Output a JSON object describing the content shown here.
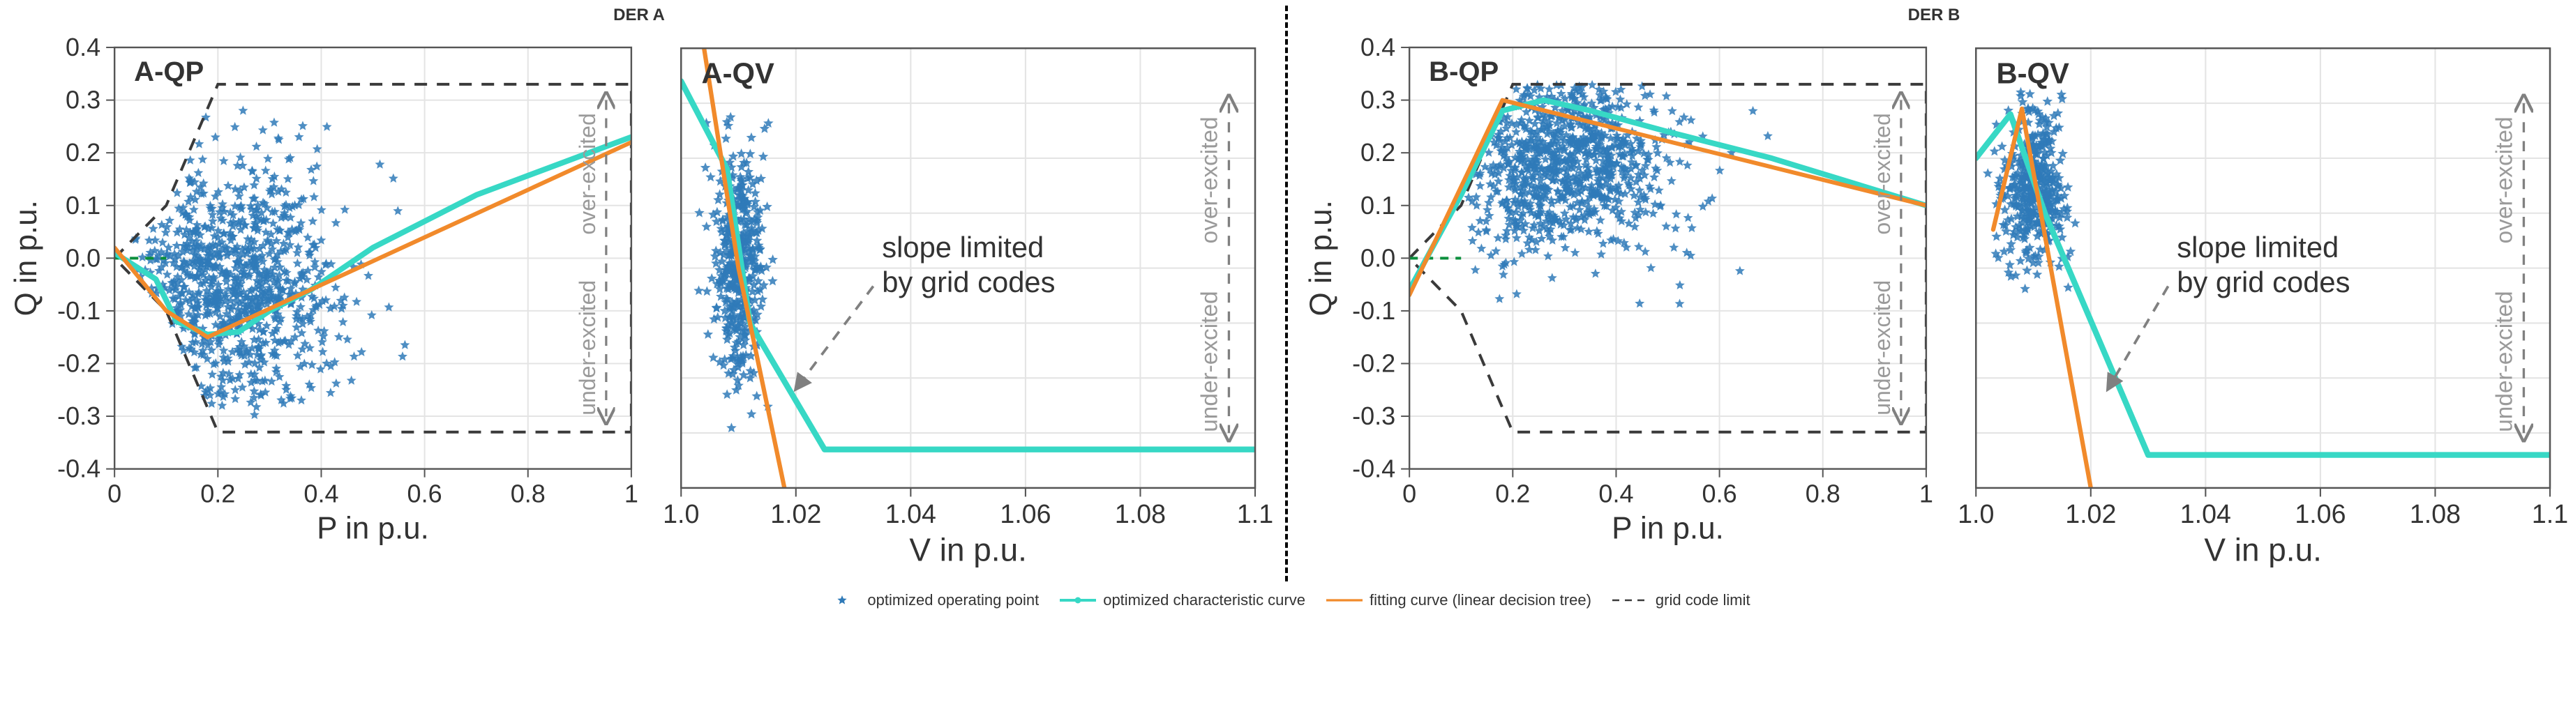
{
  "titles": {
    "derA": "DER A",
    "derB": "DER B"
  },
  "labels": {
    "P": "P in p.u.",
    "V": "V in p.u.",
    "Q": "Q in p.u.",
    "A_QP": "A-QP",
    "A_QV": "A-QV",
    "B_QP": "B-QP",
    "B_QV": "B-QV",
    "slope": "slope limited\nby grid codes",
    "over": "over-excited",
    "under": "under-excited"
  },
  "legend": {
    "scatter": "optimized operating point",
    "charCurve": "optimized characteristic curve",
    "fitCurve": "fitting curve (linear decision tree)",
    "gridLimit": "grid code limit"
  },
  "colors": {
    "scatter": "#2f7ab8",
    "charCurve": "#37d8c5",
    "fitCurve": "#f18a2b",
    "gridLimit": "#3a3a3a",
    "axis": "#555555",
    "gridline": "#e4e4e4",
    "text": "#333333",
    "annotArrow": "#808080",
    "verticalText": "#9a9a9a",
    "bg": "#ffffff"
  },
  "axes": {
    "P": {
      "min": 0.0,
      "max": 1.0,
      "ticks": [
        0.0,
        0.2,
        0.4,
        0.6,
        0.8,
        1.0
      ]
    },
    "V": {
      "min": 1.0,
      "max": 1.1,
      "ticks": [
        1.0,
        1.02,
        1.04,
        1.06,
        1.08,
        1.1
      ],
      "tickLabels": [
        "1.0",
        "1.02",
        "1.04",
        "1.06",
        "1.08",
        "1.1"
      ]
    },
    "Q": {
      "min": -0.4,
      "max": 0.4,
      "ticks": [
        -0.4,
        -0.3,
        -0.2,
        -0.1,
        0.0,
        0.1,
        0.2,
        0.3,
        0.4
      ]
    }
  },
  "style": {
    "marker_size": 2.2,
    "char_line_width": 4,
    "fit_line_width": 3,
    "dash_line_width": 2,
    "grid_line_width": 1,
    "tick_fontsize": 18,
    "axis_label_fontsize": 22,
    "panel_label_fontsize": 20,
    "title_fontsize": 24,
    "annot_fontsize": 20,
    "vert_fontsize": 16
  },
  "gridCode_QP": [
    [
      0.0,
      0.0
    ],
    [
      0.1,
      0.1
    ],
    [
      0.2,
      0.33
    ],
    [
      1.0,
      0.33
    ],
    [
      1.0,
      -0.33
    ],
    [
      0.2,
      -0.33
    ],
    [
      0.1,
      -0.1
    ],
    [
      0.0,
      0.0
    ]
  ],
  "A_QP": {
    "char": [
      [
        0.0,
        0.01
      ],
      [
        0.08,
        -0.04
      ],
      [
        0.12,
        -0.12
      ],
      [
        0.18,
        -0.145
      ],
      [
        0.24,
        -0.14
      ],
      [
        0.3,
        -0.1
      ],
      [
        0.38,
        -0.06
      ],
      [
        0.5,
        0.02
      ],
      [
        0.7,
        0.12
      ],
      [
        1.0,
        0.23
      ]
    ],
    "fit": [
      [
        0.0,
        0.02
      ],
      [
        0.1,
        -0.1
      ],
      [
        0.18,
        -0.15
      ],
      [
        1.0,
        0.22
      ]
    ],
    "scatter_count": 900,
    "scatter_range": {
      "p": [
        0.03,
        0.62
      ],
      "q": [
        -0.3,
        0.34
      ]
    },
    "scatter_center": {
      "p": 0.22,
      "q": -0.05
    },
    "scatter_seed": 11
  },
  "A_QV": {
    "char": [
      [
        1.0,
        0.34
      ],
      [
        1.008,
        0.18
      ],
      [
        1.012,
        -0.1
      ],
      [
        1.025,
        -0.33
      ],
      [
        1.1,
        -0.33
      ]
    ],
    "fit": [
      [
        1.004,
        0.4
      ],
      [
        1.01,
        0.0
      ],
      [
        1.018,
        -0.4
      ]
    ],
    "scatter_count": 420,
    "scatter_range": {
      "v": [
        1.003,
        1.016
      ],
      "q": [
        -0.3,
        0.3
      ]
    },
    "scatter_center": {
      "v": 1.01,
      "q": 0.0
    },
    "scatter_seed": 21
  },
  "B_QP": {
    "char": [
      [
        0.0,
        -0.06
      ],
      [
        0.1,
        0.12
      ],
      [
        0.18,
        0.28
      ],
      [
        0.26,
        0.3
      ],
      [
        0.35,
        0.28
      ],
      [
        0.5,
        0.24
      ],
      [
        0.7,
        0.19
      ],
      [
        1.0,
        0.1
      ]
    ],
    "fit": [
      [
        0.0,
        -0.07
      ],
      [
        0.18,
        0.3
      ],
      [
        1.0,
        0.1
      ]
    ],
    "scatter_count": 900,
    "scatter_range": {
      "p": [
        0.1,
        0.7
      ],
      "q": [
        -0.15,
        0.33
      ]
    },
    "scatter_center": {
      "p": 0.3,
      "q": 0.18
    },
    "scatter_seed": 31
  },
  "B_QV": {
    "char": [
      [
        1.0,
        0.2
      ],
      [
        1.006,
        0.28
      ],
      [
        1.012,
        0.1
      ],
      [
        1.03,
        -0.34
      ],
      [
        1.1,
        -0.34
      ]
    ],
    "fit": [
      [
        1.003,
        0.07
      ],
      [
        1.008,
        0.29
      ],
      [
        1.02,
        -0.4
      ]
    ],
    "scatter_count": 420,
    "scatter_range": {
      "v": [
        1.002,
        1.018
      ],
      "q": [
        -0.08,
        0.32
      ]
    },
    "scatter_center": {
      "v": 1.01,
      "q": 0.15
    },
    "scatter_seed": 41
  }
}
